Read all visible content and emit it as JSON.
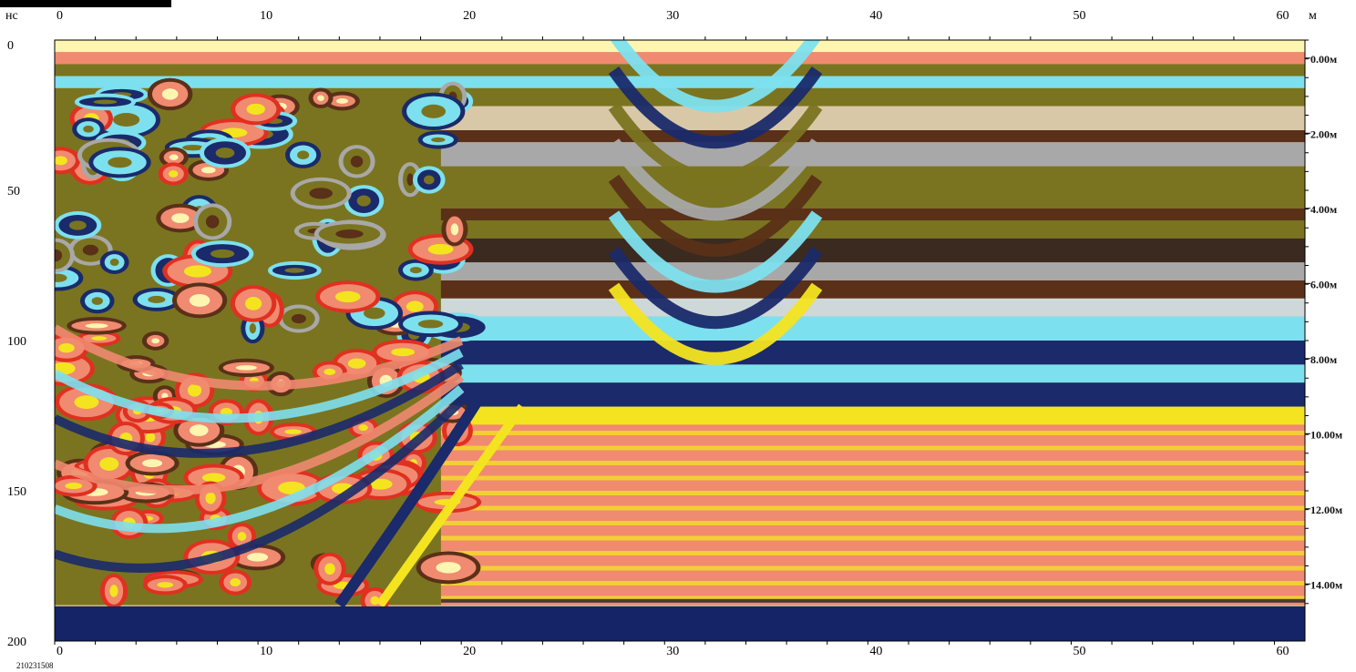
{
  "chart_data": {
    "type": "heatmap",
    "x_unit": "м",
    "y_unit": "нс",
    "x_ticks": [
      0,
      10,
      20,
      30,
      40,
      50,
      60
    ],
    "xlim": [
      0,
      61.5
    ],
    "y_ticks": [
      0,
      50,
      100,
      150,
      200
    ],
    "ylim": [
      0,
      200
    ],
    "depth_unit": "м",
    "depth_ticks": [
      {
        "label": "0.00м",
        "ns": 6
      },
      {
        "label": "2.00м",
        "ns": 31
      },
      {
        "label": "4.00м",
        "ns": 56
      },
      {
        "label": "6.00м",
        "ns": 81
      },
      {
        "label": "8.00м",
        "ns": 106
      },
      {
        "label": "10.00м",
        "ns": 131
      },
      {
        "label": "12.00м",
        "ns": 156
      },
      {
        "label": "14.00м",
        "ns": 181
      }
    ],
    "data_end_ns": 188,
    "file_id": "210231508",
    "hyperbola": {
      "apex_x": 32.5,
      "apex_ns": 18,
      "half_width_m": 5
    },
    "colors": {
      "olive": "#7a7420",
      "dark_navy": "#1a2a6a",
      "cyan": "#7de0ee",
      "salmon": "#f08a70",
      "yellow": "#f4e420",
      "brown": "#5a3018",
      "grey": "#a8a8a8",
      "pale_yellow": "#fdf5b0",
      "background_navy": "#142466"
    }
  }
}
